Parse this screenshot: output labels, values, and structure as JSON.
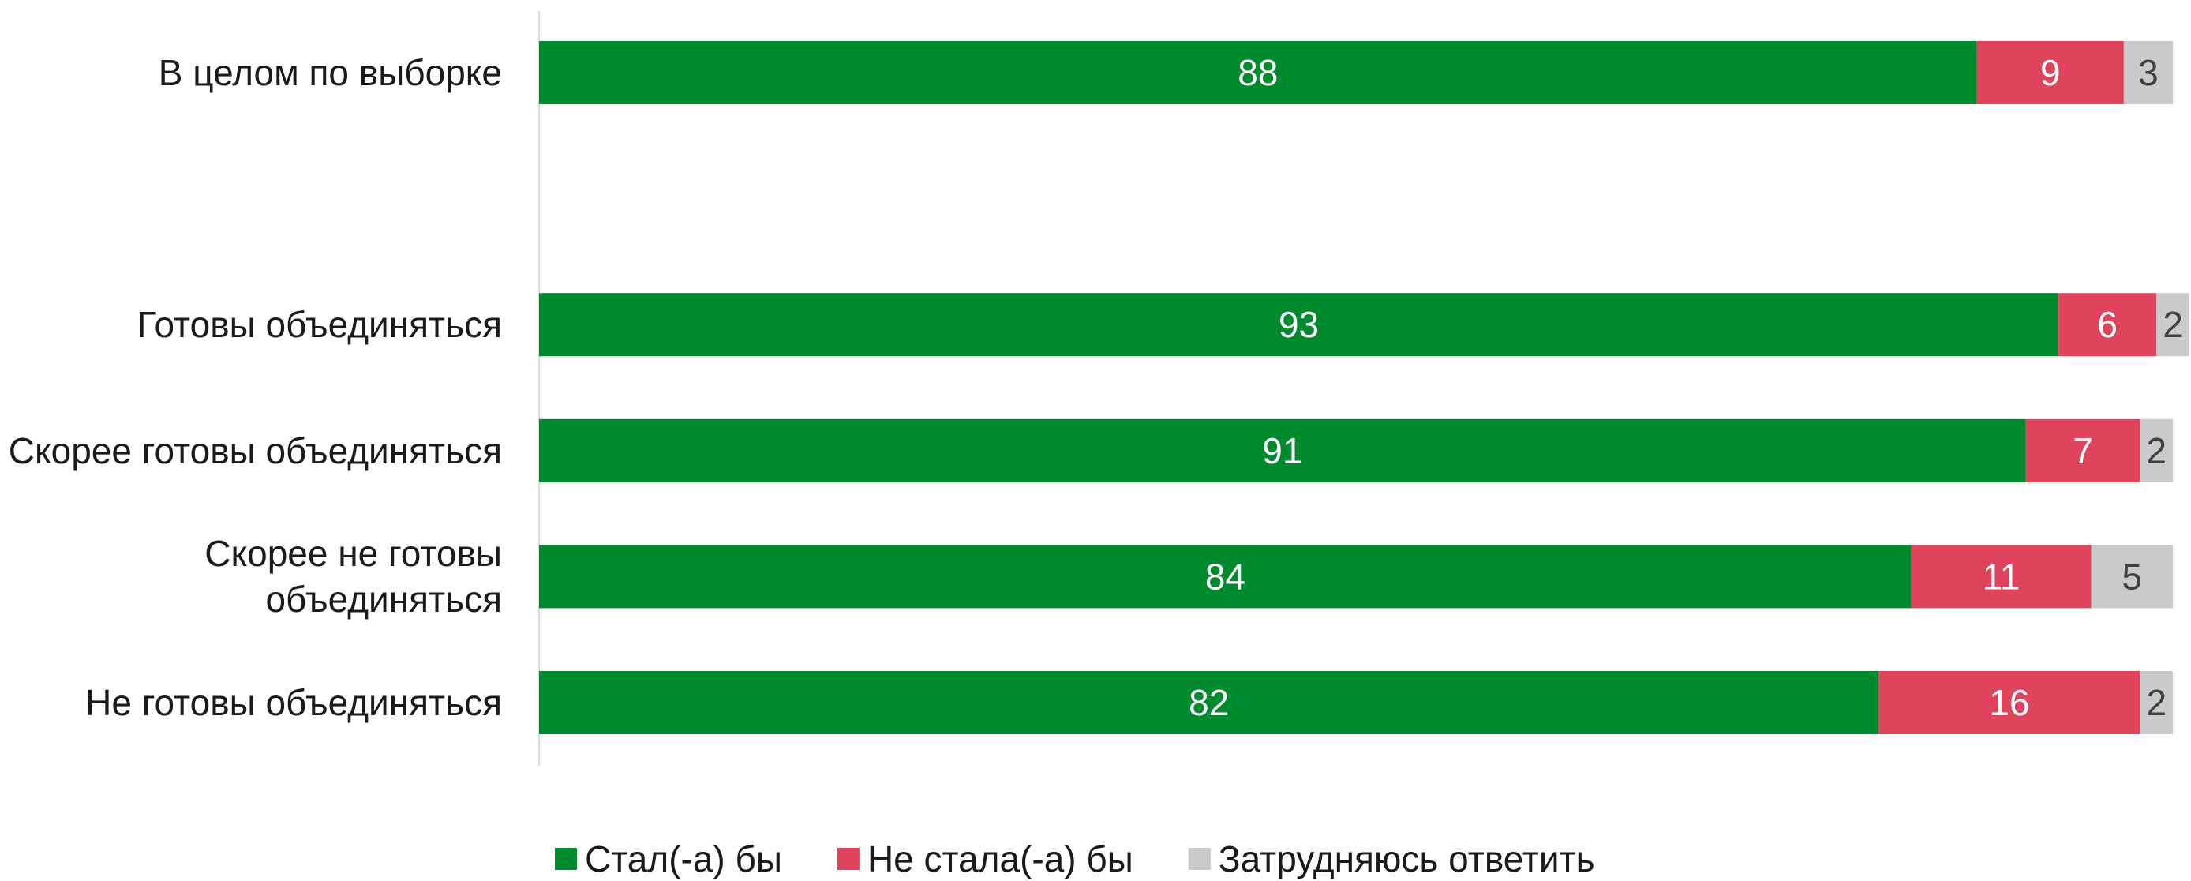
{
  "chart_data": {
    "type": "stacked-barh",
    "categories": [
      "В целом по выборке",
      null,
      "Готовы объединяться",
      "Скорее готовы объединяться",
      "Скорее не готовы объединяться",
      "Не готовы объединяться"
    ],
    "series": [
      {
        "name": "Стал(-а) бы",
        "color": "#008a2e",
        "label_color": "#ffffff",
        "values": [
          88,
          null,
          93,
          91,
          84,
          82
        ]
      },
      {
        "name": "Не стала(-а) бы",
        "color": "#e0445c",
        "label_color": "#ffffff",
        "values": [
          9,
          null,
          6,
          7,
          11,
          16
        ]
      },
      {
        "name": "Затрудняюсь ответить",
        "color": "#c8cacc",
        "label_color": "#404040",
        "values": [
          3,
          null,
          2,
          2,
          5,
          2
        ]
      }
    ],
    "xlim": [
      0,
      100
    ],
    "legend": "bottom"
  }
}
